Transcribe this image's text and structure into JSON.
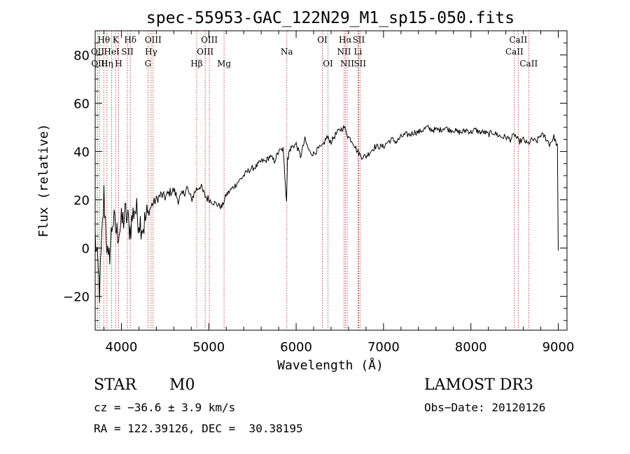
{
  "chart_data": {
    "type": "line",
    "title": "spec-55953-GAC_122N29_M1_sp15-050.fits",
    "xlabel": "Wavelength (Å)",
    "ylabel": "Flux (relative)",
    "xlim": [
      3700,
      9100
    ],
    "ylim": [
      -34,
      90
    ],
    "x_ticks": [
      4000,
      5000,
      6000,
      7000,
      8000,
      9000
    ],
    "y_ticks": [
      -20,
      0,
      20,
      40,
      60,
      80
    ],
    "grid": false,
    "line_color": "#000000",
    "marker_color": "#b22222",
    "spectrum": {
      "x": [
        3700,
        3750,
        3800,
        3850,
        3900,
        3950,
        4000,
        4050,
        4100,
        4150,
        4200,
        4250,
        4300,
        4350,
        4400,
        4450,
        4500,
        4550,
        4600,
        4650,
        4700,
        4750,
        4800,
        4850,
        4900,
        4950,
        5000,
        5050,
        5100,
        5150,
        5200,
        5250,
        5300,
        5350,
        5400,
        5450,
        5500,
        5550,
        5600,
        5650,
        5700,
        5750,
        5800,
        5850,
        5890,
        5900,
        5920,
        5950,
        6000,
        6050,
        6100,
        6150,
        6200,
        6250,
        6300,
        6350,
        6400,
        6450,
        6500,
        6550,
        6600,
        6650,
        6700,
        6750,
        6800,
        6850,
        6900,
        6950,
        7000,
        7050,
        7100,
        7150,
        7200,
        7250,
        7300,
        7350,
        7400,
        7450,
        7500,
        7550,
        7600,
        7650,
        7700,
        7750,
        7800,
        7850,
        7900,
        7950,
        8000,
        8050,
        8100,
        8150,
        8200,
        8250,
        8300,
        8350,
        8400,
        8450,
        8500,
        8550,
        8600,
        8650,
        8700,
        8750,
        8800,
        8850,
        8900,
        8950,
        8990,
        9000
      ],
      "y": [
        5,
        -18,
        22,
        -8,
        12,
        6,
        10,
        14,
        8,
        17,
        12,
        9,
        14,
        18,
        20,
        22,
        21,
        23,
        24,
        20,
        22,
        25,
        20,
        24,
        26,
        22,
        20,
        19,
        18,
        17,
        22,
        24,
        26,
        28,
        30,
        32,
        33,
        34,
        36,
        36,
        38,
        36,
        40,
        41,
        20,
        36,
        40,
        42,
        43,
        38,
        45,
        40,
        39,
        41,
        42,
        46,
        44,
        47,
        49,
        50,
        46,
        44,
        40,
        38,
        38,
        40,
        42,
        42,
        42,
        44,
        45,
        44,
        46,
        47,
        47,
        48,
        48,
        49,
        50,
        49,
        49,
        49,
        50,
        49,
        49,
        48,
        48,
        49,
        48,
        49,
        48,
        48,
        47,
        48,
        47,
        46,
        46,
        45,
        47,
        44,
        45,
        43,
        45,
        44,
        47,
        46,
        43,
        46,
        42,
        -1
      ]
    },
    "lines": [
      {
        "label": "Hθ",
        "x": 3798,
        "row": 1
      },
      {
        "label": "OII",
        "x": 3728,
        "row": 2
      },
      {
        "label": "OIII",
        "x": 3750,
        "row": 3
      },
      {
        "label": "Hη",
        "x": 3835,
        "row": 3
      },
      {
        "label": "K",
        "x": 3934,
        "row": 1
      },
      {
        "label": "HeI",
        "x": 3889,
        "row": 2
      },
      {
        "label": "H",
        "x": 3968,
        "row": 3
      },
      {
        "label": "SII",
        "x": 4069,
        "row": 2
      },
      {
        "label": "Hδ",
        "x": 4102,
        "row": 1
      },
      {
        "label": "OIII",
        "x": 4363,
        "row": 1
      },
      {
        "label": "Hγ",
        "x": 4340,
        "row": 2
      },
      {
        "label": "G",
        "x": 4304,
        "row": 3
      },
      {
        "label": "OIII",
        "x": 5007,
        "row": 1
      },
      {
        "label": "OIII",
        "x": 4959,
        "row": 2
      },
      {
        "label": "Hβ",
        "x": 4861,
        "row": 3
      },
      {
        "label": "Mg",
        "x": 5175,
        "row": 3
      },
      {
        "label": "Na",
        "x": 5893,
        "row": 2
      },
      {
        "label": "OI",
        "x": 6300,
        "row": 1
      },
      {
        "label": "OI",
        "x": 6364,
        "row": 3
      },
      {
        "label": "Hα",
        "x": 6563,
        "row": 1
      },
      {
        "label": "NII",
        "x": 6548,
        "row": 2
      },
      {
        "label": "NII",
        "x": 6584,
        "row": 3
      },
      {
        "label": "SII",
        "x": 6716,
        "row": 1
      },
      {
        "label": "Li",
        "x": 6708,
        "row": 2
      },
      {
        "label": "SII",
        "x": 6731,
        "row": 3
      },
      {
        "label": "CaII",
        "x": 8542,
        "row": 1
      },
      {
        "label": "CaII",
        "x": 8498,
        "row": 2
      },
      {
        "label": "CaII",
        "x": 8662,
        "row": 3
      }
    ]
  },
  "info": {
    "object_type": "STAR",
    "subclass": "M0",
    "survey": "LAMOST DR3",
    "cz": "cz = −36.6 ± 3.9 km/s",
    "obs_date": "Obs−Date: 20120126",
    "coords": "RA = 122.39126, DEC =  30.38195"
  }
}
